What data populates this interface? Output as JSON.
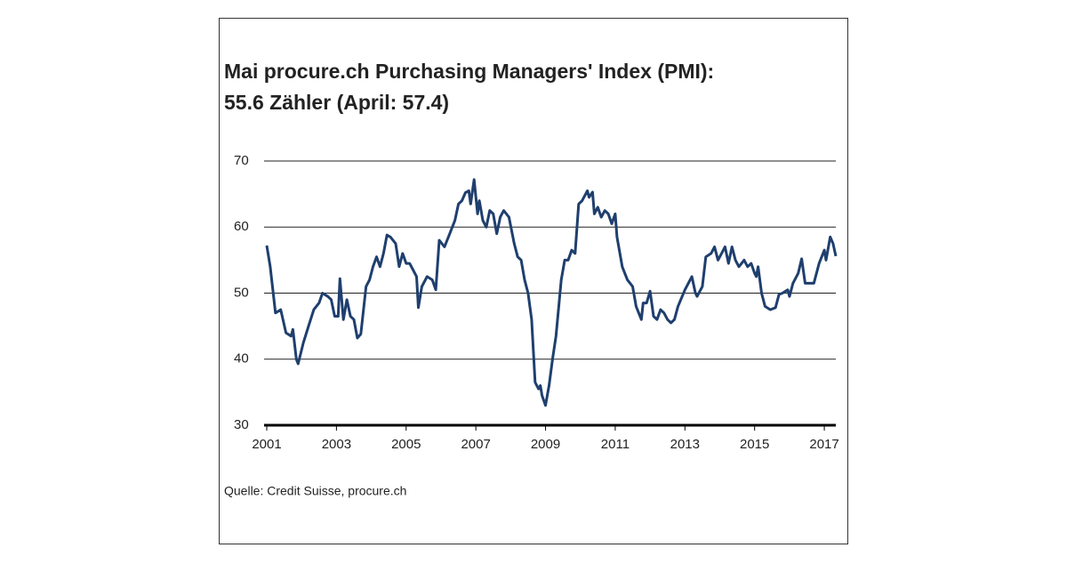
{
  "chart_data": {
    "type": "line",
    "title": "Mai procure.ch Purchasing Managers' Index (PMI):",
    "subtitle": "55.6 Zähler (April: 57.4)",
    "source": "Quelle: Credit Suisse, procure.ch",
    "xlim": [
      2001,
      2017.33
    ],
    "xticks": [
      2001,
      2003,
      2005,
      2007,
      2009,
      2011,
      2013,
      2015,
      2017
    ],
    "ylim": [
      30,
      70
    ],
    "yticks": [
      30,
      40,
      50,
      60,
      70
    ],
    "grid": true,
    "series": [
      {
        "name": "PMI",
        "color": "#1f3f6e",
        "x": [
          2001.0,
          2001.1,
          2001.25,
          2001.4,
          2001.55,
          2001.7,
          2001.75,
          2001.85,
          2001.9,
          2002.05,
          2002.2,
          2002.35,
          2002.5,
          2002.6,
          2002.75,
          2002.85,
          2002.95,
          2003.05,
          2003.1,
          2003.2,
          2003.3,
          2003.4,
          2003.5,
          2003.6,
          2003.7,
          2003.85,
          2003.95,
          2004.05,
          2004.15,
          2004.25,
          2004.35,
          2004.45,
          2004.55,
          2004.7,
          2004.8,
          2004.9,
          2005.0,
          2005.1,
          2005.2,
          2005.3,
          2005.35,
          2005.45,
          2005.5,
          2005.6,
          2005.75,
          2005.85,
          2005.95,
          2006.1,
          2006.25,
          2006.4,
          2006.5,
          2006.6,
          2006.7,
          2006.8,
          2006.85,
          2006.95,
          2007.05,
          2007.1,
          2007.2,
          2007.3,
          2007.4,
          2007.5,
          2007.6,
          2007.7,
          2007.8,
          2007.95,
          2008.1,
          2008.2,
          2008.3,
          2008.4,
          2008.5,
          2008.6,
          2008.7,
          2008.8,
          2008.85,
          2008.9,
          2009.0,
          2009.1,
          2009.2,
          2009.3,
          2009.45,
          2009.55,
          2009.65,
          2009.75,
          2009.85,
          2009.95,
          2010.05,
          2010.2,
          2010.25,
          2010.35,
          2010.4,
          2010.5,
          2010.6,
          2010.7,
          2010.8,
          2010.9,
          2011.0,
          2011.05,
          2011.2,
          2011.35,
          2011.5,
          2011.6,
          2011.75,
          2011.8,
          2011.9,
          2012.0,
          2012.1,
          2012.2,
          2012.3,
          2012.4,
          2012.5,
          2012.6,
          2012.7,
          2012.8,
          2013.0,
          2013.2,
          2013.3,
          2013.35,
          2013.5,
          2013.6,
          2013.75,
          2013.85,
          2013.95,
          2014.05,
          2014.15,
          2014.25,
          2014.35,
          2014.45,
          2014.55,
          2014.7,
          2014.8,
          2014.9,
          2015.0,
          2015.05,
          2015.1,
          2015.2,
          2015.3,
          2015.45,
          2015.6,
          2015.7,
          2015.8,
          2015.95,
          2016.0,
          2016.1,
          2016.25,
          2016.35,
          2016.45,
          2016.7,
          2016.85,
          2017.0,
          2017.05,
          2017.17,
          2017.25,
          2017.33
        ],
        "values": [
          57.2,
          54,
          47,
          47.5,
          44,
          43.5,
          44.5,
          40,
          39.3,
          42.5,
          45,
          47.5,
          48.5,
          50,
          49.5,
          49,
          46.5,
          46.5,
          52.2,
          46,
          49,
          46.5,
          46,
          43.2,
          43.8,
          51,
          52,
          54,
          55.5,
          54,
          56,
          58.8,
          58.5,
          57.5,
          54,
          56,
          54.5,
          54.5,
          53.5,
          52.5,
          47.8,
          51,
          51.5,
          52.5,
          52,
          50.5,
          58,
          57,
          59,
          61,
          63.5,
          64,
          65.2,
          65.5,
          63.5,
          67.2,
          62,
          64,
          61,
          60,
          62.5,
          62,
          59,
          61.5,
          62.5,
          61.5,
          57.5,
          55.5,
          55,
          52,
          50,
          46,
          36.5,
          35.5,
          36,
          34.5,
          33,
          36,
          40,
          43.5,
          52,
          55,
          55,
          56.5,
          56,
          63.5,
          64,
          65.5,
          64.5,
          65.3,
          62,
          63,
          61.5,
          62.5,
          62,
          60.5,
          62,
          58.5,
          54,
          52,
          51,
          48,
          46,
          48.5,
          48.5,
          50.3,
          46.5,
          46,
          47.5,
          47,
          46,
          45.5,
          46,
          48,
          50.5,
          52.5,
          50,
          49.5,
          51,
          55.5,
          56,
          57,
          55,
          56,
          57,
          54.5,
          57,
          55,
          54,
          55,
          54,
          54.5,
          53,
          52.5,
          54,
          50,
          48,
          47.5,
          47.8,
          49.8,
          50,
          50.5,
          49.5,
          51.5,
          53,
          55.2,
          51.5,
          51.5,
          54.5,
          56.5,
          55,
          58.5,
          57.5,
          55.6
        ]
      }
    ]
  }
}
